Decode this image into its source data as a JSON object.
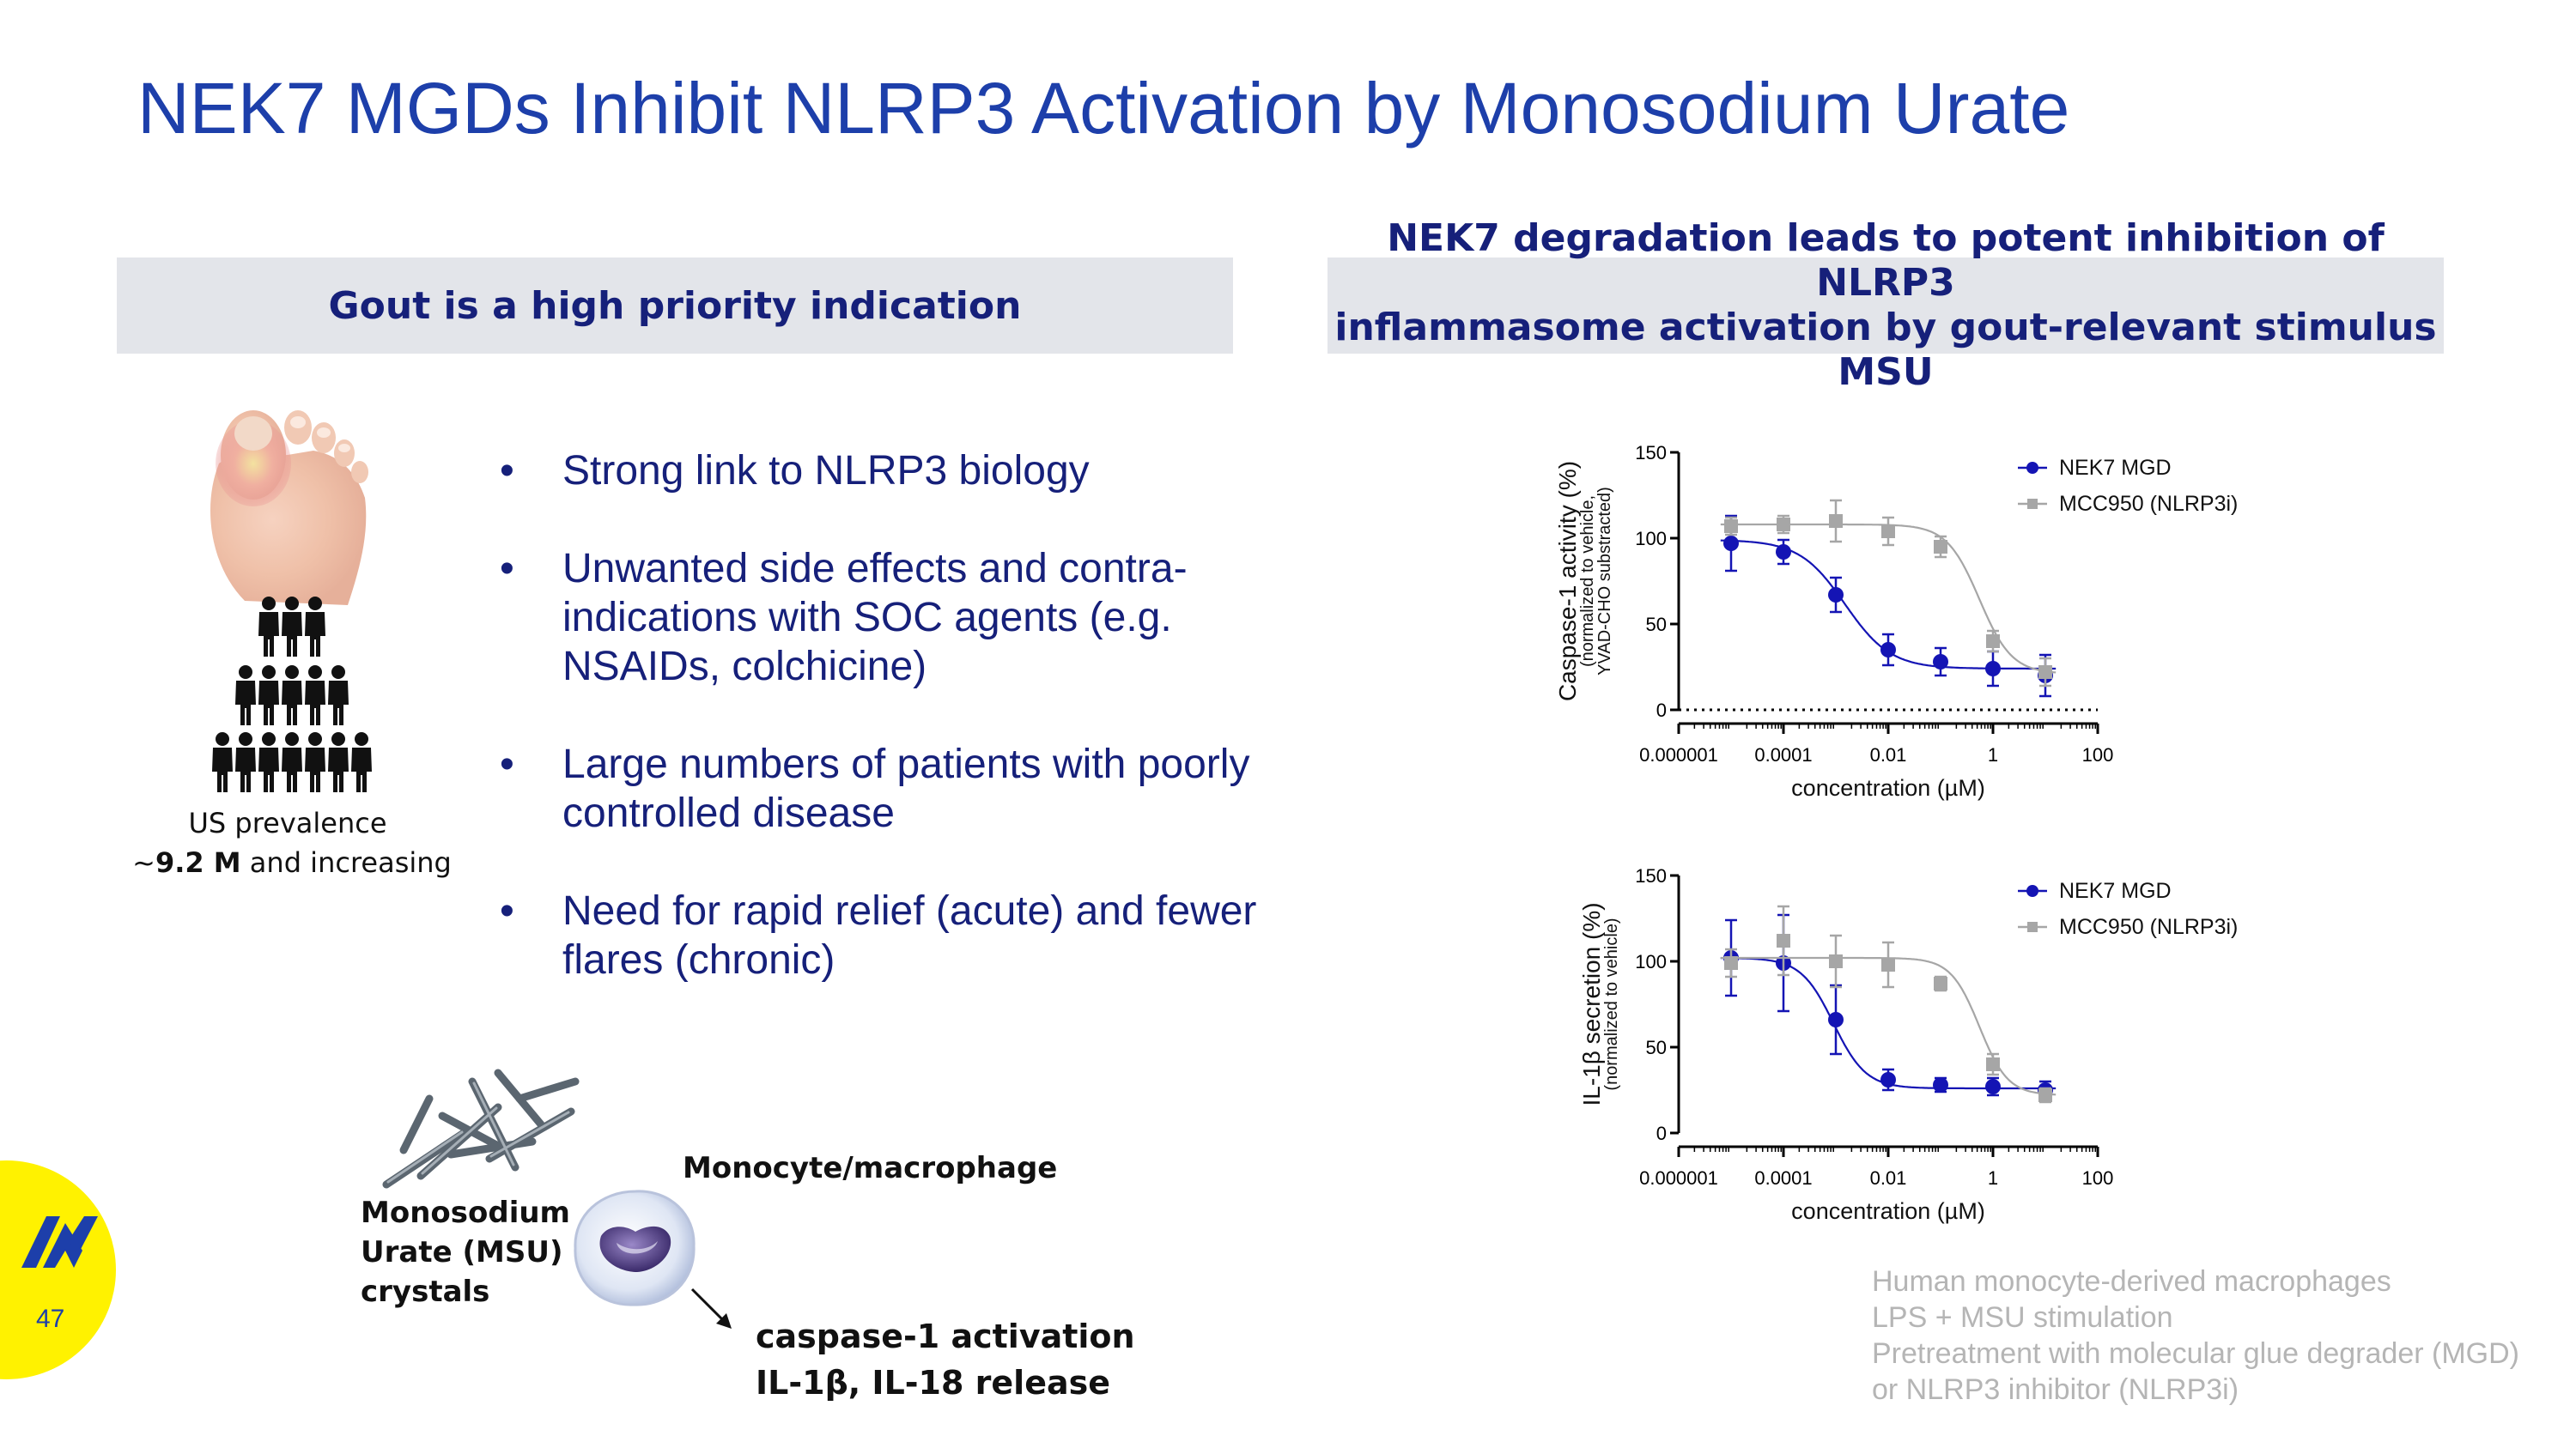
{
  "title": "NEK7 MGDs Inhibit NLRP3 Activation by Monosodium Urate",
  "left_panel": {
    "heading": "Gout is a high priority indication",
    "bullets": [
      "Strong link to NLRP3 biology",
      "Unwanted side effects and contra-indications with SOC agents (e.g. NSAIDs, colchicine)",
      "Large numbers of patients with poorly controlled disease",
      "Need for rapid relief (acute) and fewer flares (chronic)"
    ],
    "bullet_symbol": "•",
    "prevalence_label": "US prevalence",
    "prevalence_prefix": "~",
    "prevalence_value": "9.2 M",
    "prevalence_suffix": "and increasing",
    "msu_label_1": "Monosodium",
    "msu_label_2": "Urate (MSU)",
    "msu_label_3": "crystals",
    "cell_label": "Monocyte/macrophage",
    "outcome_1": "caspase-1 activation",
    "outcome_2": "IL-1β, IL-18 release",
    "icons": [
      "foot-icon",
      "people-icon",
      "crystal-icon",
      "macrophage-icon",
      "arrow-icon"
    ]
  },
  "right_panel": {
    "heading_line1": "NEK7 degradation leads to potent inhibition of NLRP3",
    "heading_line2": "inflammasome activation by gout-relevant stimulus MSU"
  },
  "notes": [
    "Human monocyte-derived macrophages",
    "LPS + MSU stimulation",
    "Pretreatment with molecular glue degrader (MGD)",
    "or NLRP3 inhibitor (NLRP3i)"
  ],
  "page_number": "47",
  "colors": {
    "title": "#1d3faa",
    "navy": "#16207a",
    "mgd": "#1414b4",
    "mcc": "#a6a6a6",
    "yellow": "#fff200"
  },
  "chart_data": [
    {
      "type": "scatter",
      "title": "",
      "ylabel_1": "Caspase-1 activity (%)",
      "ylabel_2": "(normalized to vehicle,",
      "ylabel_3": "YVAD-CHO substracted)",
      "xlabel": "concentration (µM)",
      "xscale": "log",
      "xlim": [
        1e-06,
        100
      ],
      "ylim": [
        0,
        150
      ],
      "x_ticks": [
        "0.000001",
        "0.0001",
        "0.01",
        "1",
        "100"
      ],
      "y_ticks": [
        "0",
        "50",
        "100",
        "150"
      ],
      "baseline": 0,
      "legend_position": "top-right",
      "series": [
        {
          "name": "NEK7 MGD",
          "x": [
            1e-05,
            0.0001,
            0.001,
            0.01,
            0.1,
            1,
            10
          ],
          "y": [
            97,
            92,
            67,
            35,
            28,
            24,
            20
          ],
          "err": [
            16,
            7,
            10,
            9,
            8,
            10,
            12
          ],
          "fit_top": 99,
          "fit_bottom": 24,
          "fit_ec50": 0.0015,
          "fit_hill": 1.0
        },
        {
          "name": "MCC950 (NLRP3i)",
          "x": [
            1e-05,
            0.0001,
            0.001,
            0.01,
            0.1,
            1,
            10
          ],
          "y": [
            107,
            108,
            110,
            104,
            95,
            40,
            22
          ],
          "err": [
            5,
            5,
            12,
            8,
            6,
            6,
            8
          ],
          "fit_top": 108,
          "fit_bottom": 21,
          "fit_ec50": 0.55,
          "fit_hill": 1.4
        }
      ]
    },
    {
      "type": "scatter",
      "title": "",
      "ylabel_1": "IL-1β secretion (%)",
      "ylabel_2": "(normalized to vehicle)",
      "ylabel_3": "",
      "xlabel": "concentration (µM)",
      "xscale": "log",
      "xlim": [
        1e-06,
        100
      ],
      "ylim": [
        0,
        150
      ],
      "x_ticks": [
        "0.000001",
        "0.0001",
        "0.01",
        "1",
        "100"
      ],
      "y_ticks": [
        "0",
        "50",
        "100",
        "150"
      ],
      "baseline": null,
      "legend_position": "top-right",
      "series": [
        {
          "name": "NEK7 MGD",
          "x": [
            1e-05,
            0.0001,
            0.001,
            0.01,
            0.1,
            1,
            10
          ],
          "y": [
            102,
            99,
            66,
            31,
            28,
            27,
            25
          ],
          "err": [
            22,
            28,
            20,
            6,
            4,
            5,
            5
          ],
          "fit_top": 102,
          "fit_bottom": 26,
          "fit_ec50": 0.0009,
          "fit_hill": 1.4
        },
        {
          "name": "MCC950 (NLRP3i)",
          "x": [
            1e-05,
            0.0001,
            0.001,
            0.01,
            0.1,
            1,
            10
          ],
          "y": [
            99,
            112,
            100,
            98,
            87,
            40,
            22
          ],
          "err": [
            8,
            20,
            15,
            13,
            4,
            6,
            4
          ],
          "fit_top": 102,
          "fit_bottom": 22,
          "fit_ec50": 0.55,
          "fit_hill": 1.6
        }
      ]
    }
  ]
}
